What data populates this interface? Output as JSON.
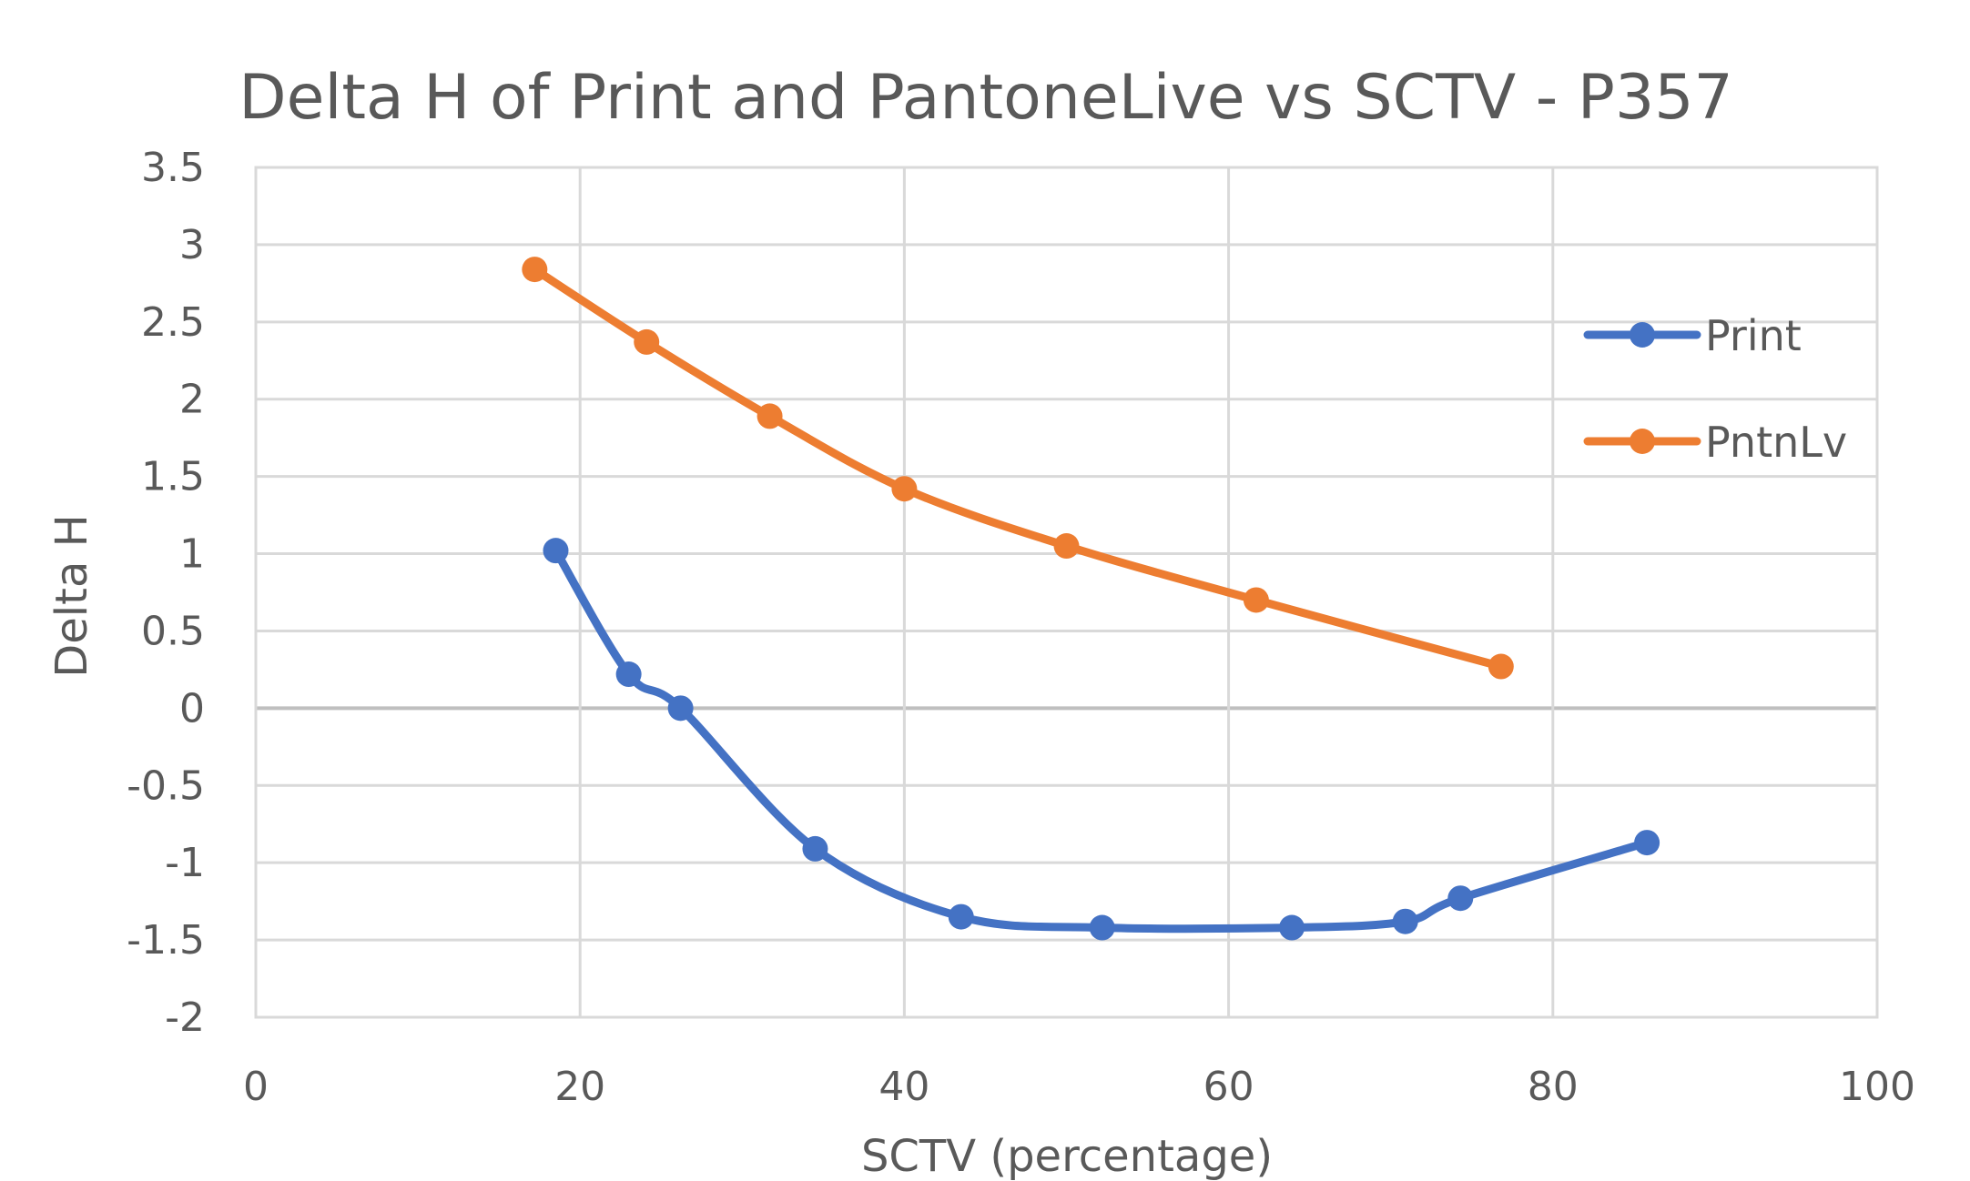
{
  "chart_data": {
    "type": "line",
    "title": "Delta H of Print and PantoneLive vs SCTV - P357",
    "xlabel": "SCTV (percentage)",
    "ylabel": "Delta H",
    "xlim": [
      0,
      100
    ],
    "ylim": [
      -2,
      3.5
    ],
    "x_ticks": [
      "0",
      "20",
      "40",
      "60",
      "80",
      "100"
    ],
    "y_ticks": [
      "3.5",
      "3",
      "2.5",
      "2",
      "1.5",
      "1",
      "0.5",
      "0",
      "-0.5",
      "-1",
      "-1.5",
      "-2"
    ],
    "grid": true,
    "smooth": true,
    "legend_position": "right",
    "series": [
      {
        "name": "Print",
        "color": "#4472C4",
        "points": [
          [
            18.5,
            1.02
          ],
          [
            23,
            0.22
          ],
          [
            26.2,
            0.0
          ],
          [
            34.5,
            -0.91
          ],
          [
            43.5,
            -1.35
          ],
          [
            52.2,
            -1.42
          ],
          [
            63.9,
            -1.42
          ],
          [
            70.9,
            -1.38
          ],
          [
            74.3,
            -1.23
          ],
          [
            85.8,
            -0.87
          ]
        ]
      },
      {
        "name": "PntnLv",
        "color": "#ED7D31",
        "points": [
          [
            17.2,
            2.84
          ],
          [
            24.1,
            2.37
          ],
          [
            31.7,
            1.89
          ],
          [
            40,
            1.42
          ],
          [
            50,
            1.05
          ],
          [
            61.7,
            0.7
          ],
          [
            76.8,
            0.27
          ]
        ]
      }
    ]
  }
}
